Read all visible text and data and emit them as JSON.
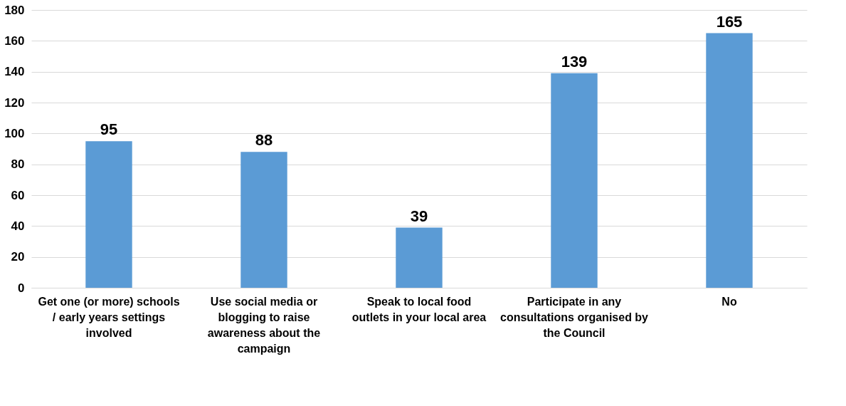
{
  "chart_data": {
    "type": "bar",
    "categories": [
      "Get one (or more) schools / early years settings involved",
      "Use social media or blogging to raise awareness about the campaign",
      "Speak to local food outlets in your local area",
      "Participate in any consultations organised by the Council",
      "No"
    ],
    "values": [
      95,
      88,
      39,
      139,
      165
    ],
    "color": "#5b9bd5",
    "ylim": [
      0,
      180
    ],
    "yticks": [
      0,
      20,
      40,
      60,
      80,
      100,
      120,
      140,
      160,
      180
    ],
    "grid": "y",
    "data_labels": true
  }
}
